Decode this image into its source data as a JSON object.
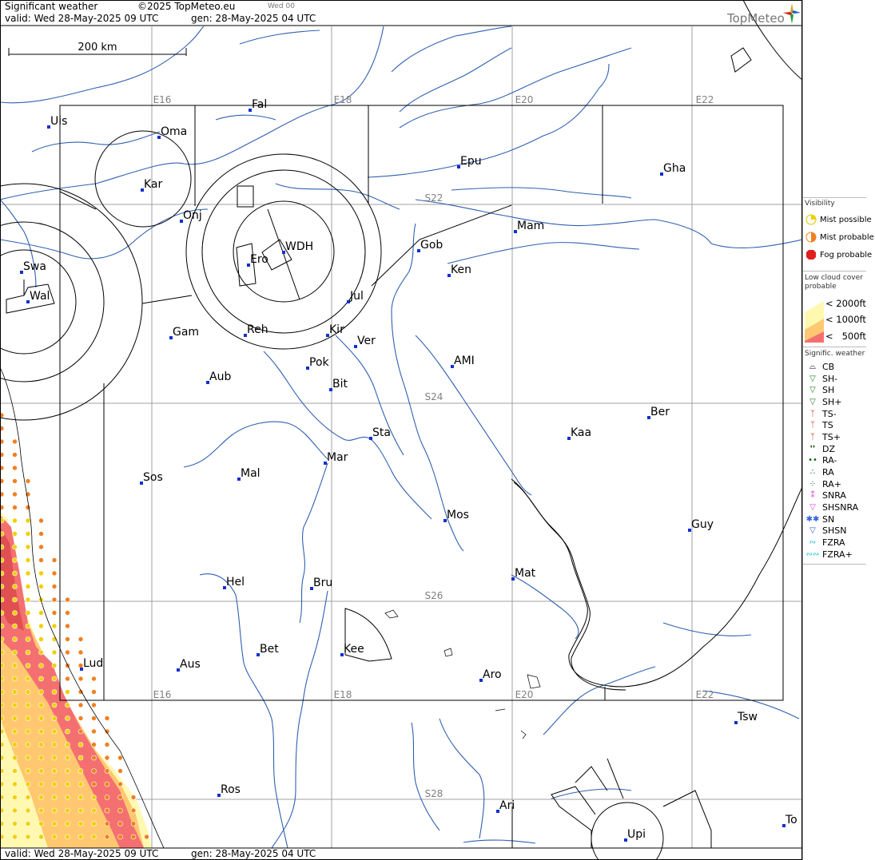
{
  "header": {
    "title": "Significant weather",
    "copyright": "©2025 TopMeteo.eu",
    "day_code": "Wed 00",
    "valid": "valid:  Wed  28-May-2025  09 UTC",
    "gen": "gen:  28-May-2025 04 UTC",
    "brand": "TopMeteo"
  },
  "footer": {
    "valid": "valid:  Wed  28-May-2025  09 UTC",
    "gen": "gen:  28-May-2025 04 UTC"
  },
  "scale": {
    "label": "200 km"
  },
  "grid": {
    "lon_labels": [
      "E16",
      "E18",
      "E20",
      "E22"
    ],
    "lat_labels": [
      "S22",
      "S24",
      "S26",
      "S28"
    ]
  },
  "cities": [
    {
      "name": "Uis"
    },
    {
      "name": "Fal"
    },
    {
      "name": "Oma"
    },
    {
      "name": "Kar"
    },
    {
      "name": "Epu"
    },
    {
      "name": "Gha"
    },
    {
      "name": "Onj"
    },
    {
      "name": "Mam"
    },
    {
      "name": "Swa"
    },
    {
      "name": "Gob"
    },
    {
      "name": "WDH"
    },
    {
      "name": "Ero"
    },
    {
      "name": "Ken"
    },
    {
      "name": "Wal"
    },
    {
      "name": "Jul"
    },
    {
      "name": "Gam"
    },
    {
      "name": "Reh"
    },
    {
      "name": "Kir"
    },
    {
      "name": "Ver"
    },
    {
      "name": "Pok"
    },
    {
      "name": "AMI"
    },
    {
      "name": "Aub"
    },
    {
      "name": "Bit"
    },
    {
      "name": "Ber"
    },
    {
      "name": "Sta"
    },
    {
      "name": "Kaa"
    },
    {
      "name": "Mar"
    },
    {
      "name": "Sos"
    },
    {
      "name": "Mal"
    },
    {
      "name": "Mos"
    },
    {
      "name": "Guy"
    },
    {
      "name": "Mat"
    },
    {
      "name": "Hel"
    },
    {
      "name": "Bru"
    },
    {
      "name": "Bet"
    },
    {
      "name": "Kee"
    },
    {
      "name": "Lud"
    },
    {
      "name": "Aus"
    },
    {
      "name": "Aro"
    },
    {
      "name": "Tsw"
    },
    {
      "name": "Ros"
    },
    {
      "name": "Ari"
    },
    {
      "name": "To"
    },
    {
      "name": "Upi"
    }
  ],
  "legend": {
    "visibility": {
      "title": "Visibility",
      "items": [
        {
          "label": "Mist possible",
          "color": "#f0d000"
        },
        {
          "label": "Mist probable",
          "color": "#f08020"
        },
        {
          "label": "Fog probable",
          "color": "#e02020"
        }
      ]
    },
    "low_cloud": {
      "title": "Low cloud cover probable",
      "items": [
        {
          "label": "< 2000ft",
          "color": "#fff8b0"
        },
        {
          "label": "< 1000ft",
          "color": "#ffc870"
        },
        {
          "label": "<   500ft",
          "color": "#f47070"
        }
      ]
    },
    "signific": {
      "title": "Signific. weather",
      "items": [
        {
          "label": "CB",
          "icon": "cb-icon",
          "color": "#000000"
        },
        {
          "label": "SH-",
          "icon": "shower-light-icon",
          "color": "#208020"
        },
        {
          "label": "SH",
          "icon": "shower-icon",
          "color": "#208020"
        },
        {
          "label": "SH+",
          "icon": "shower-heavy-icon",
          "color": "#208020"
        },
        {
          "label": "TS-",
          "icon": "thunderstorm-light-icon",
          "color": "#d02020"
        },
        {
          "label": "TS",
          "icon": "thunderstorm-icon",
          "color": "#d02020"
        },
        {
          "label": "TS+",
          "icon": "thunderstorm-heavy-icon",
          "color": "#d02020"
        },
        {
          "label": "DZ",
          "icon": "drizzle-icon",
          "color": "#106010"
        },
        {
          "label": "RA-",
          "icon": "rain-light-icon",
          "color": "#106010"
        },
        {
          "label": "RA",
          "icon": "rain-icon",
          "color": "#106010"
        },
        {
          "label": "RA+",
          "icon": "rain-heavy-icon",
          "color": "#106010"
        },
        {
          "label": "SNRA",
          "icon": "snow-rain-icon",
          "color": "#d040d0"
        },
        {
          "label": "SHSNRA",
          "icon": "snow-rain-shower-icon",
          "color": "#d040d0"
        },
        {
          "label": "SN",
          "icon": "snow-icon",
          "color": "#3060e0"
        },
        {
          "label": "SHSN",
          "icon": "snow-shower-icon",
          "color": "#3060e0"
        },
        {
          "label": "FZRA",
          "icon": "freezing-rain-icon",
          "color": "#20c0e0"
        },
        {
          "label": "FZRA+",
          "icon": "freezing-rain-heavy-icon",
          "color": "#20c0e0"
        }
      ]
    }
  }
}
